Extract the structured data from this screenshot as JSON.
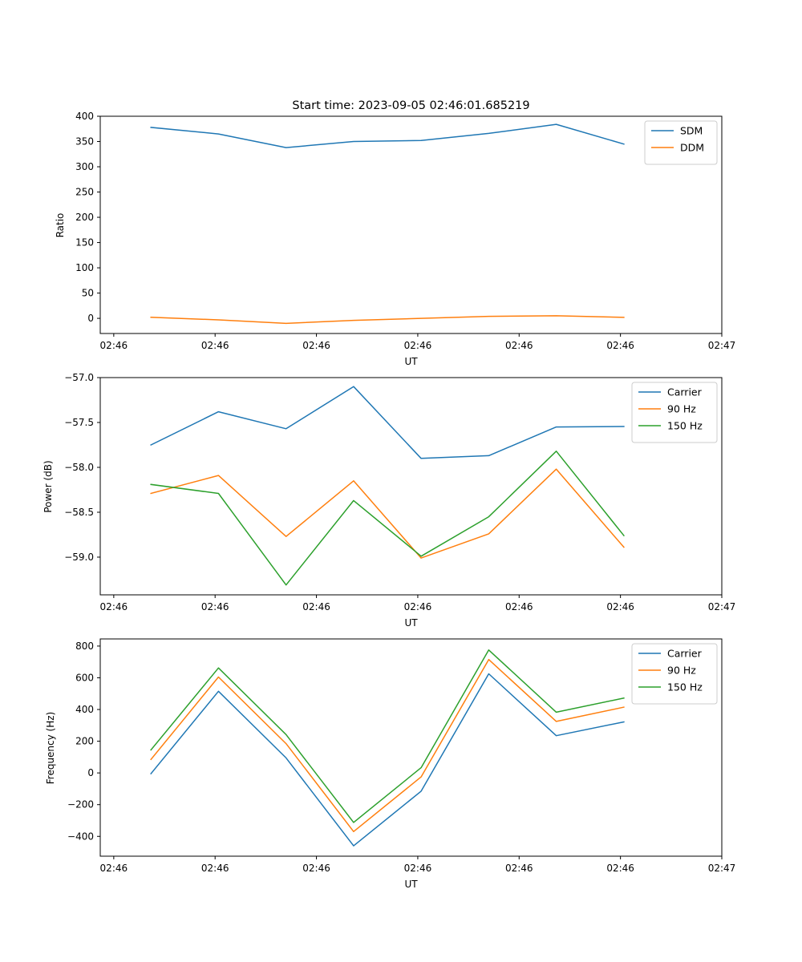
{
  "chart_data": [
    {
      "type": "line",
      "title": "Start time: 2023-09-05 02:46:01.685219",
      "xlabel": "UT",
      "ylabel": "Ratio",
      "xlim": [
        -0.7,
        8.5
      ],
      "ylim": [
        -30,
        400
      ],
      "x": [
        0.05,
        1.05,
        2.05,
        3.05,
        4.05,
        5.05,
        6.05,
        7.05
      ],
      "xticks": [
        -0.5,
        1.0,
        2.5,
        4.0,
        5.5,
        7.0,
        8.5
      ],
      "xticklabels": [
        "02:46",
        "02:46",
        "02:46",
        "02:46",
        "02:46",
        "02:46",
        "02:47"
      ],
      "yticks": [
        0,
        50,
        100,
        150,
        200,
        250,
        300,
        350,
        400
      ],
      "yticklabels": [
        "0",
        "50",
        "100",
        "150",
        "200",
        "250",
        "300",
        "350",
        "400"
      ],
      "legend_position": "top-right",
      "series": [
        {
          "name": "SDM",
          "color": "#1f77b4",
          "values": [
            378,
            365,
            338,
            350,
            352,
            366,
            384,
            345
          ]
        },
        {
          "name": "DDM",
          "color": "#ff7f0e",
          "values": [
            2,
            -3,
            -10,
            -4,
            0,
            4,
            5,
            2
          ]
        }
      ]
    },
    {
      "type": "line",
      "title": "",
      "xlabel": "UT",
      "ylabel": "Power (dB)",
      "xlim": [
        -0.7,
        8.5
      ],
      "ylim": [
        -59.42,
        -57.0
      ],
      "x": [
        0.05,
        1.05,
        2.05,
        3.05,
        4.05,
        5.05,
        6.05,
        7.05
      ],
      "xticks": [
        -0.5,
        1.0,
        2.5,
        4.0,
        5.5,
        7.0,
        8.5
      ],
      "xticklabels": [
        "02:46",
        "02:46",
        "02:46",
        "02:46",
        "02:46",
        "02:46",
        "02:47"
      ],
      "yticks": [
        -59.0,
        -58.5,
        -58.0,
        -57.5,
        -57.0
      ],
      "yticklabels": [
        "−59.0",
        "−58.5",
        "−58.0",
        "−57.5",
        "−57.0"
      ],
      "legend_position": "top-right",
      "series": [
        {
          "name": "Carrier",
          "color": "#1f77b4",
          "values": [
            -57.75,
            -57.38,
            -57.57,
            -57.1,
            -57.9,
            -57.87,
            -57.55,
            -57.545
          ]
        },
        {
          "name": "90 Hz",
          "color": "#ff7f0e",
          "values": [
            -58.29,
            -58.09,
            -58.77,
            -58.15,
            -59.01,
            -58.74,
            -58.02,
            -58.89
          ]
        },
        {
          "name": "150 Hz",
          "color": "#2ca02c",
          "values": [
            -58.19,
            -58.29,
            -59.31,
            -58.37,
            -58.99,
            -58.55,
            -57.82,
            -58.76
          ]
        }
      ]
    },
    {
      "type": "line",
      "title": "",
      "xlabel": "UT",
      "ylabel": "Frequency (Hz)",
      "xlim": [
        -0.7,
        8.5
      ],
      "ylim": [
        -525,
        845
      ],
      "x": [
        0.05,
        1.05,
        2.05,
        3.05,
        4.05,
        5.05,
        6.05,
        7.05
      ],
      "xticks": [
        -0.5,
        1.0,
        2.5,
        4.0,
        5.5,
        7.0,
        8.5
      ],
      "xticklabels": [
        "02:46",
        "02:46",
        "02:46",
        "02:46",
        "02:46",
        "02:46",
        "02:47"
      ],
      "yticks": [
        -400,
        -200,
        0,
        200,
        400,
        600,
        800
      ],
      "yticklabels": [
        "−400",
        "−200",
        "0",
        "200",
        "400",
        "600",
        "800"
      ],
      "legend_position": "top-right",
      "series": [
        {
          "name": "Carrier",
          "color": "#1f77b4",
          "values": [
            -5,
            515,
            95,
            -460,
            -115,
            625,
            235,
            322
          ]
        },
        {
          "name": "90 Hz",
          "color": "#ff7f0e",
          "values": [
            85,
            605,
            185,
            -370,
            -25,
            715,
            325,
            415
          ]
        },
        {
          "name": "150 Hz",
          "color": "#2ca02c",
          "values": [
            145,
            662,
            242,
            -312,
            33,
            775,
            383,
            472
          ]
        }
      ]
    }
  ]
}
